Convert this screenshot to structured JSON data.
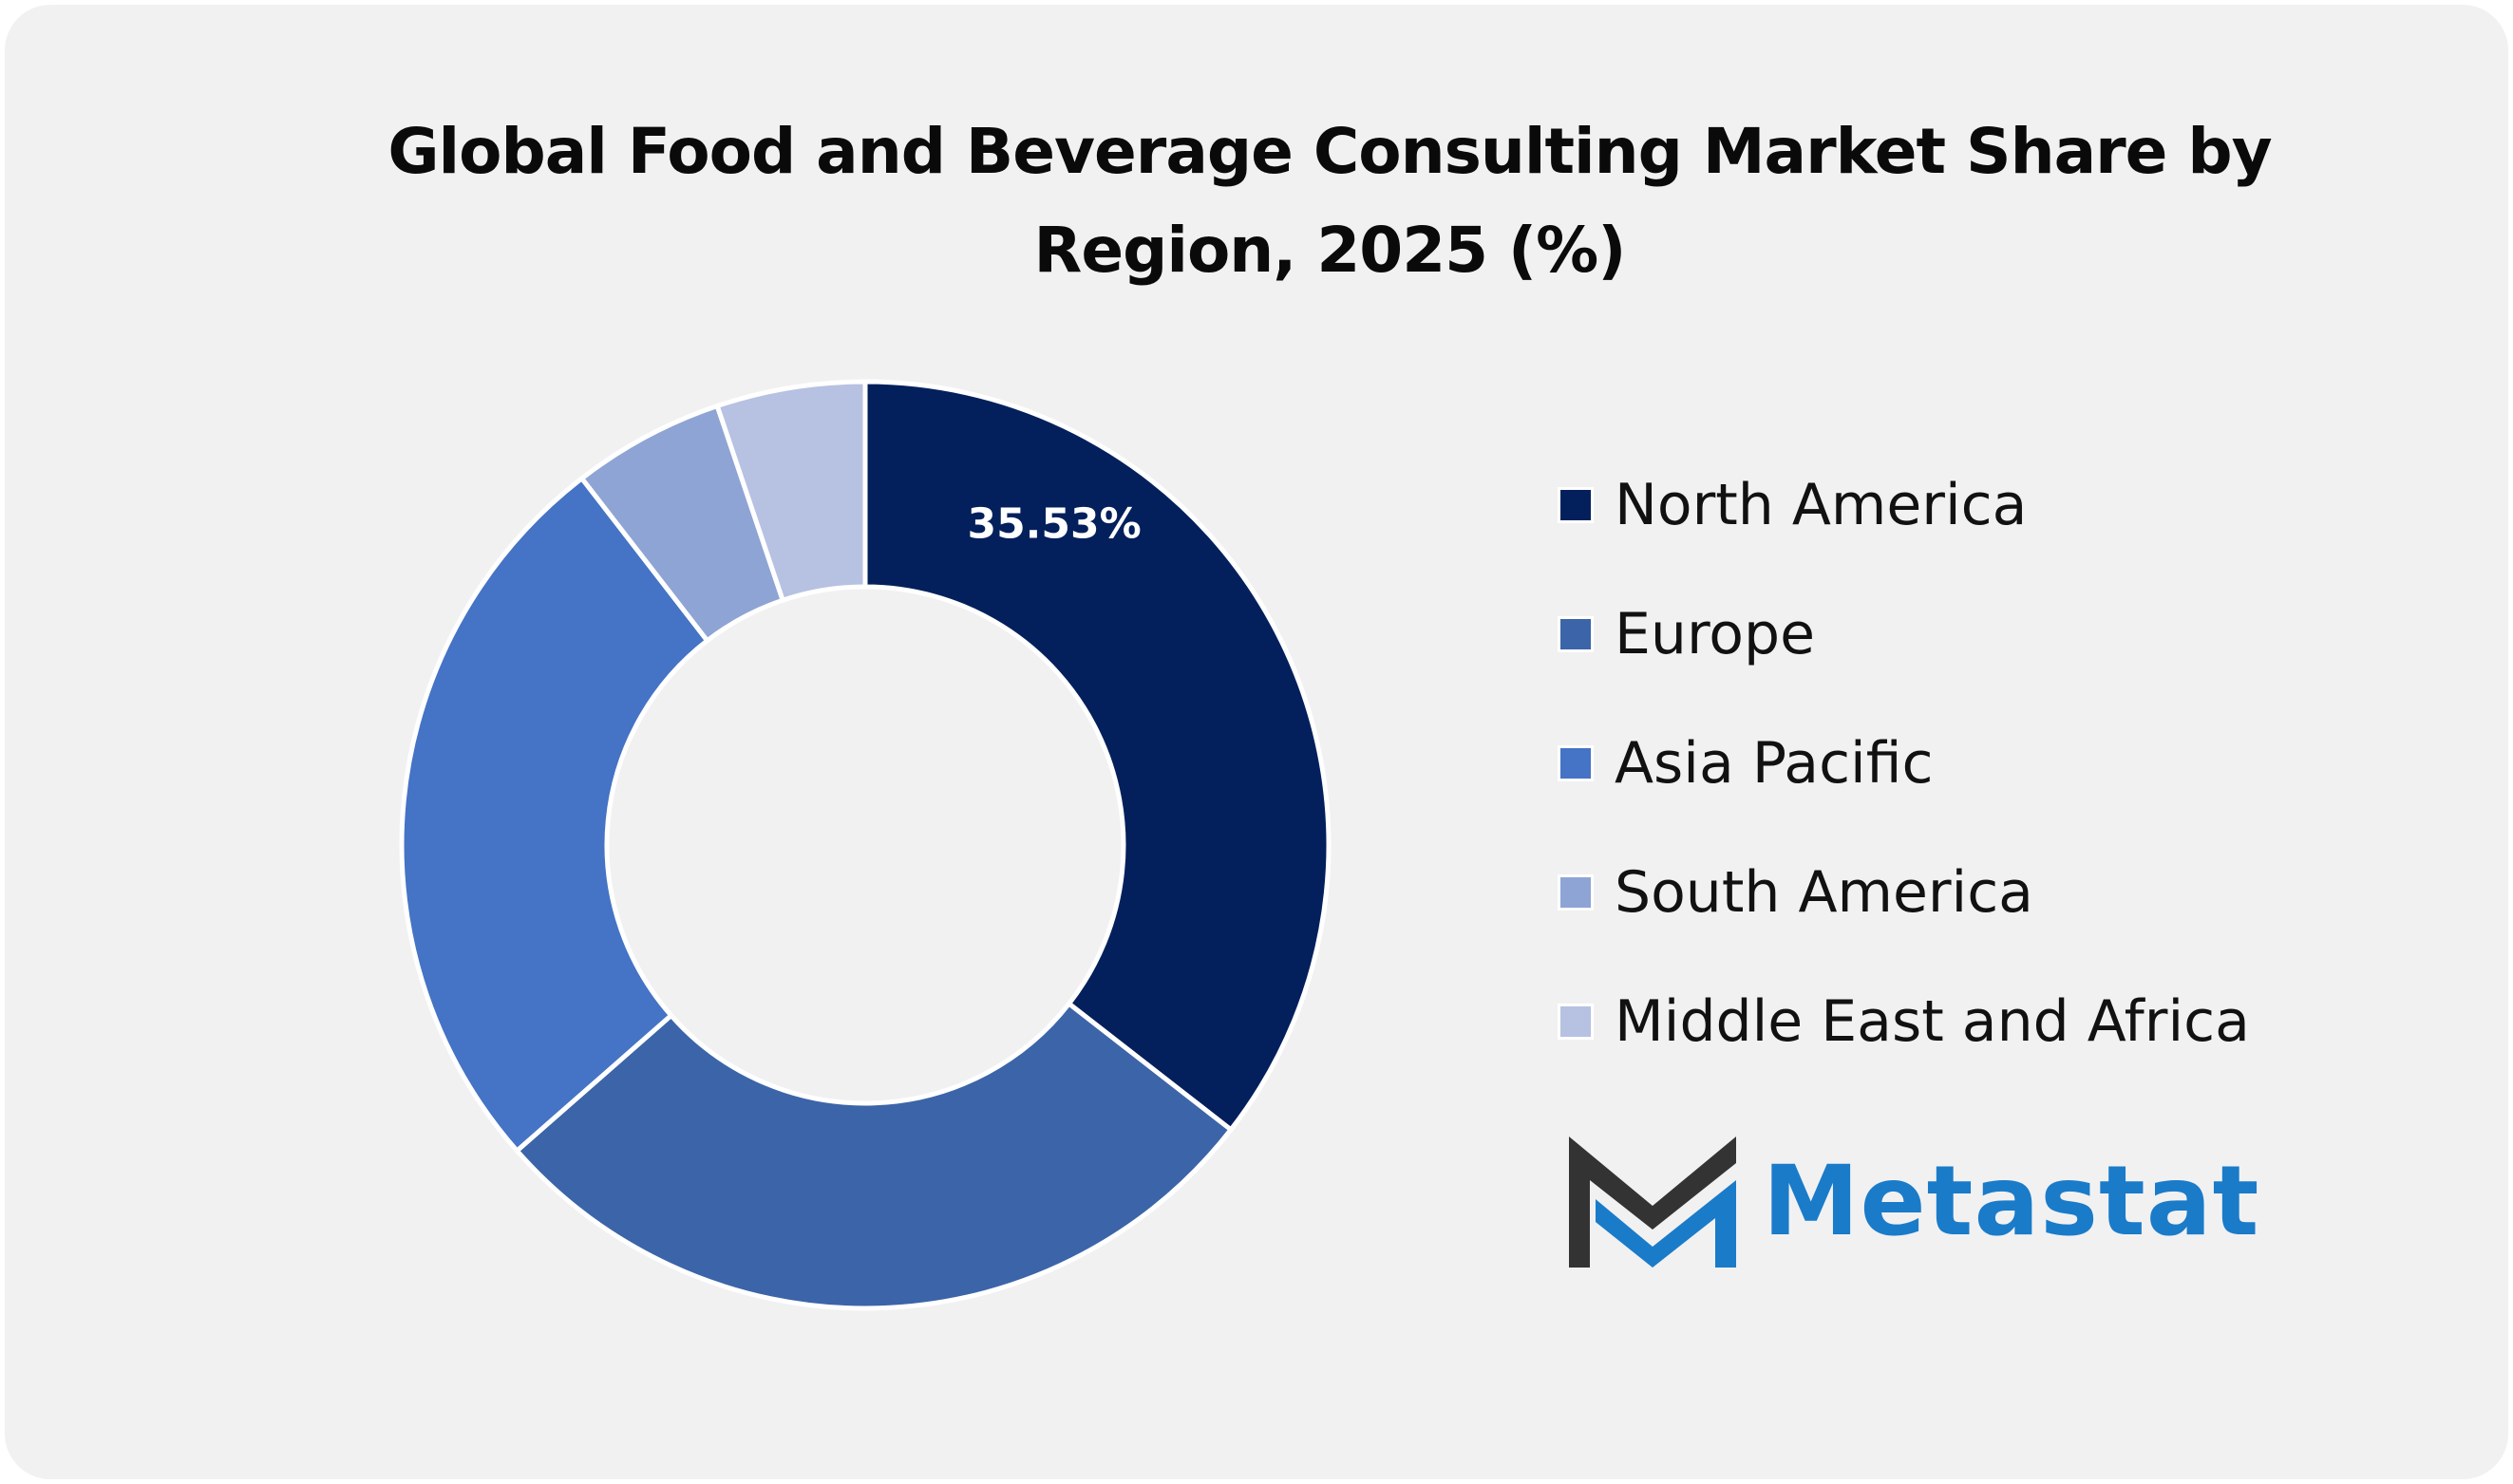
{
  "chart_data": {
    "type": "pie",
    "title": "Global Food and Beverage Consulting Market Share by Region, 2025 (%)",
    "categories": [
      "North America",
      "Europe",
      "Asia Pacific",
      "South America",
      "Middle East and Africa"
    ],
    "values": [
      35.53,
      28.0,
      26.0,
      5.3,
      5.17
    ],
    "colors": [
      "#03205c",
      "#3c64a8",
      "#4573c5",
      "#8ea4d4",
      "#b7c1e2"
    ],
    "data_labels": [
      "35.53%",
      "",
      "",
      "",
      ""
    ],
    "style": "donut",
    "legend_position": "right"
  },
  "brand": {
    "name": "Metastat",
    "logo_icon": "metastat-m-logo",
    "text_color": "#1a7bc9",
    "icon_dark_color": "#333333"
  }
}
